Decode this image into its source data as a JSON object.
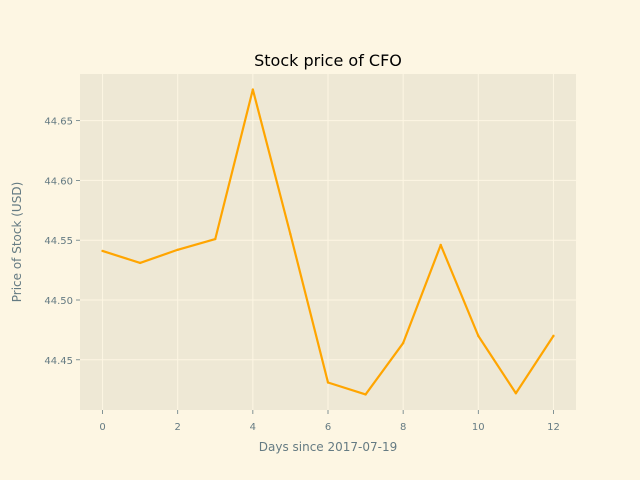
{
  "chart_data": {
    "type": "line",
    "title": "Stock price of CFO",
    "xlabel": "Days since 2017-07-19",
    "ylabel": "Price of Stock (USD)",
    "x": [
      0,
      1,
      2,
      3,
      4,
      5,
      6,
      7,
      8,
      9,
      10,
      11,
      12
    ],
    "series": [
      {
        "name": "CFO",
        "values": [
          44.541,
          44.531,
          44.542,
          44.551,
          44.676,
          44.555,
          44.431,
          44.421,
          44.464,
          44.546,
          44.47,
          44.422,
          44.47
        ]
      }
    ],
    "xlim": [
      -0.6,
      12.6
    ],
    "ylim": [
      44.408,
      44.689
    ],
    "xticks": [
      0,
      2,
      4,
      6,
      8,
      10,
      12
    ],
    "xtick_labels": [
      "0",
      "2",
      "4",
      "6",
      "8",
      "10",
      "12"
    ],
    "yticks": [
      44.45,
      44.5,
      44.55,
      44.6,
      44.65
    ],
    "ytick_labels": [
      "44.45",
      "44.50",
      "44.55",
      "44.60",
      "44.65"
    ],
    "grid": true,
    "colors": {
      "line": "#ffa500",
      "plot_background": "#eee8d5",
      "figure_background": "#fdf6e3",
      "text": "#657b83"
    }
  }
}
